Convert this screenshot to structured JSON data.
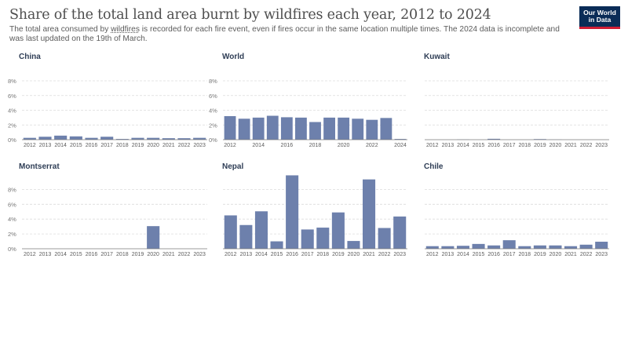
{
  "header": {
    "title": "Share of the total land area burnt by wildfires each year, 2012 to 2024",
    "subtitle_before": "The total area consumed by ",
    "subtitle_link": "wildfires",
    "subtitle_after": " is recorded for each fire event, even if fires occur in the same location multiple times. The 2024 data is incomplete and was last updated on the 19th of March.",
    "logo_line1": "Our World",
    "logo_line2": "in Data"
  },
  "colors": {
    "bar": "#6d80ac",
    "grid": "#dcdcdc",
    "axis": "#7a7a7a",
    "text": "#5b5b5b",
    "panel_title": "#2e3d55"
  },
  "chart_data": [
    {
      "type": "bar",
      "title": "China",
      "ylim": [
        0,
        8
      ],
      "yticks": [
        "0%",
        "2%",
        "4%",
        "6%",
        "8%"
      ],
      "categories": [
        "2012",
        "2013",
        "2014",
        "2015",
        "2016",
        "2017",
        "2018",
        "2019",
        "2020",
        "2021",
        "2022",
        "2023"
      ],
      "tick_labels": [
        "2012",
        "2013",
        "2014",
        "2015",
        "2016",
        "2017",
        "2018",
        "2019",
        "2020",
        "2021",
        "2022",
        "2023"
      ],
      "values": [
        0.25,
        0.4,
        0.55,
        0.45,
        0.25,
        0.4,
        0.1,
        0.25,
        0.25,
        0.2,
        0.2,
        0.25
      ]
    },
    {
      "type": "bar",
      "title": "World",
      "ylim": [
        0,
        8
      ],
      "yticks": [
        "0%",
        "2%",
        "4%",
        "6%",
        "8%"
      ],
      "categories": [
        "2012",
        "2013",
        "2014",
        "2015",
        "2016",
        "2017",
        "2018",
        "2019",
        "2020",
        "2021",
        "2022",
        "2023",
        "2024"
      ],
      "tick_labels": [
        "2012",
        "2014",
        "2016",
        "2018",
        "2020",
        "2022",
        "2024"
      ],
      "values": [
        3.2,
        2.85,
        3.0,
        3.25,
        3.05,
        3.0,
        2.4,
        3.0,
        3.0,
        2.85,
        2.7,
        2.95,
        0.1
      ]
    },
    {
      "type": "bar",
      "title": "Kuwait",
      "ylim": [
        0,
        8
      ],
      "yticks": [],
      "categories": [
        "2012",
        "2013",
        "2014",
        "2015",
        "2016",
        "2017",
        "2018",
        "2019",
        "2020",
        "2021",
        "2022",
        "2023"
      ],
      "tick_labels": [
        "2012",
        "2013",
        "2014",
        "2015",
        "2016",
        "2017",
        "2018",
        "2019",
        "2020",
        "2021",
        "2022",
        "2023"
      ],
      "values": [
        0,
        0,
        0.03,
        0,
        0.12,
        0,
        0,
        0.08,
        0.02,
        0,
        0,
        0
      ]
    },
    {
      "type": "bar",
      "title": "Montserrat",
      "ylim": [
        0,
        10
      ],
      "yticks": [
        "0%",
        "2%",
        "4%",
        "6%",
        "8%"
      ],
      "categories": [
        "2012",
        "2013",
        "2014",
        "2015",
        "2016",
        "2017",
        "2018",
        "2019",
        "2020",
        "2021",
        "2022",
        "2023"
      ],
      "tick_labels": [
        "2012",
        "2013",
        "2014",
        "2015",
        "2016",
        "2017",
        "2018",
        "2019",
        "2020",
        "2021",
        "2022",
        "2023"
      ],
      "values": [
        0,
        0,
        0,
        0,
        0,
        0,
        0,
        0,
        3.05,
        0,
        0,
        0
      ]
    },
    {
      "type": "bar",
      "title": "Nepal",
      "ylim": [
        0,
        10
      ],
      "yticks": [],
      "categories": [
        "2012",
        "2013",
        "2014",
        "2015",
        "2016",
        "2017",
        "2018",
        "2019",
        "2020",
        "2021",
        "2022",
        "2023"
      ],
      "tick_labels": [
        "2012",
        "2013",
        "2014",
        "2015",
        "2016",
        "2017",
        "2018",
        "2019",
        "2020",
        "2021",
        "2022",
        "2023"
      ],
      "values": [
        4.5,
        3.2,
        5.05,
        1.0,
        9.9,
        2.6,
        2.85,
        4.9,
        1.05,
        9.35,
        2.8,
        4.35
      ]
    },
    {
      "type": "bar",
      "title": "Chile",
      "ylim": [
        0,
        10
      ],
      "yticks": [],
      "categories": [
        "2012",
        "2013",
        "2014",
        "2015",
        "2016",
        "2017",
        "2018",
        "2019",
        "2020",
        "2021",
        "2022",
        "2023"
      ],
      "tick_labels": [
        "2012",
        "2013",
        "2014",
        "2015",
        "2016",
        "2017",
        "2018",
        "2019",
        "2020",
        "2021",
        "2022",
        "2023"
      ],
      "values": [
        0.35,
        0.35,
        0.4,
        0.65,
        0.45,
        1.15,
        0.35,
        0.45,
        0.45,
        0.35,
        0.55,
        0.95
      ]
    }
  ]
}
